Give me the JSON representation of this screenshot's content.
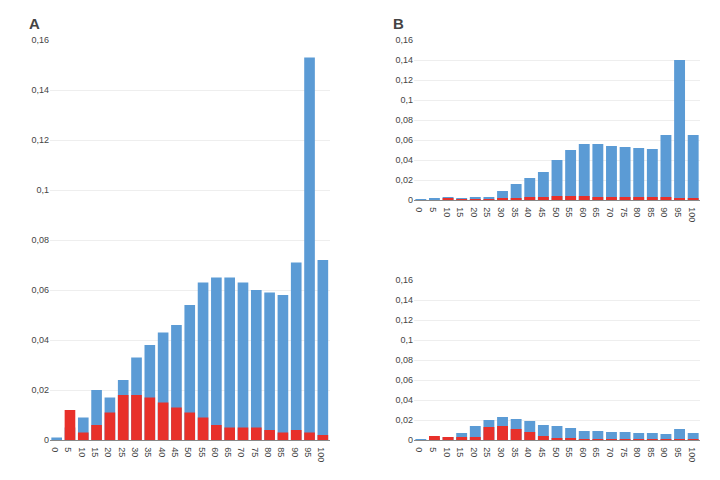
{
  "chart_data": [
    {
      "type": "bar",
      "title": "A",
      "categories": [
        0,
        5,
        10,
        15,
        20,
        25,
        30,
        35,
        40,
        45,
        50,
        55,
        60,
        65,
        70,
        75,
        80,
        85,
        90,
        95,
        100
      ],
      "series": [
        {
          "color": "#5B9BD5",
          "values": [
            0.001,
            0.005,
            0.009,
            0.02,
            0.017,
            0.024,
            0.033,
            0.038,
            0.043,
            0.046,
            0.054,
            0.063,
            0.065,
            0.065,
            0.063,
            0.06,
            0.059,
            0.058,
            0.071,
            0.153,
            0.072
          ]
        },
        {
          "color": "#E8302A",
          "values": [
            0.0,
            0.012,
            0.003,
            0.006,
            0.011,
            0.018,
            0.018,
            0.017,
            0.015,
            0.013,
            0.011,
            0.009,
            0.006,
            0.005,
            0.005,
            0.005,
            0.004,
            0.003,
            0.004,
            0.003,
            0.002
          ]
        }
      ],
      "ylim": [
        0,
        0.16
      ],
      "yticks": [
        0,
        {
          "value": 0.02,
          "label": "0,02"
        },
        {
          "value": 0.04,
          "label": "0,04"
        },
        {
          "value": 0.06,
          "label": "0,06"
        },
        {
          "value": 0.08,
          "label": "0,08"
        },
        {
          "value": 0.1,
          "label": "0,1"
        },
        {
          "value": 0.12,
          "label": "0,12"
        },
        {
          "value": 0.14,
          "label": "0,14"
        },
        {
          "value": 0.16,
          "label": "0,16"
        }
      ],
      "grid": true
    },
    {
      "type": "bar",
      "title": "B",
      "categories": [
        0,
        5,
        10,
        15,
        20,
        25,
        30,
        35,
        40,
        45,
        50,
        55,
        60,
        65,
        70,
        75,
        80,
        85,
        90,
        95,
        100
      ],
      "series": [
        {
          "color": "#5B9BD5",
          "values": [
            0.001,
            0.002,
            0.003,
            0.002,
            0.003,
            0.003,
            0.009,
            0.016,
            0.022,
            0.028,
            0.04,
            0.05,
            0.056,
            0.056,
            0.054,
            0.053,
            0.052,
            0.051,
            0.065,
            0.14,
            0.065
          ]
        },
        {
          "color": "#E8302A",
          "values": [
            0.0,
            0.0,
            0.002,
            0.001,
            0.001,
            0.001,
            0.002,
            0.002,
            0.003,
            0.003,
            0.004,
            0.004,
            0.004,
            0.003,
            0.003,
            0.003,
            0.003,
            0.003,
            0.003,
            0.002,
            0.002
          ]
        }
      ],
      "ylim": [
        0,
        0.16
      ],
      "yticks": [
        0,
        {
          "value": 0.02,
          "label": "0,02"
        },
        {
          "value": 0.04,
          "label": "0,04"
        },
        {
          "value": 0.06,
          "label": "0,06"
        },
        {
          "value": 0.08,
          "label": "0,08"
        },
        {
          "value": 0.1,
          "label": "0,1"
        },
        {
          "value": 0.12,
          "label": "0,12"
        },
        {
          "value": 0.14,
          "label": "0,14"
        },
        {
          "value": 0.16,
          "label": "0,16"
        }
      ],
      "grid": true
    },
    {
      "type": "bar",
      "categories": [
        0,
        5,
        10,
        15,
        20,
        25,
        30,
        35,
        40,
        45,
        50,
        55,
        60,
        65,
        70,
        75,
        80,
        85,
        90,
        95,
        100
      ],
      "series": [
        {
          "color": "#5B9BD5",
          "values": [
            0.001,
            0.002,
            0.003,
            0.007,
            0.014,
            0.02,
            0.023,
            0.021,
            0.019,
            0.015,
            0.014,
            0.012,
            0.009,
            0.009,
            0.008,
            0.008,
            0.007,
            0.007,
            0.006,
            0.011,
            0.007
          ]
        },
        {
          "color": "#E8302A",
          "values": [
            0.0,
            0.004,
            0.003,
            0.003,
            0.003,
            0.013,
            0.014,
            0.011,
            0.008,
            0.004,
            0.002,
            0.002,
            0.001,
            0.001,
            0.001,
            0.001,
            0.001,
            0.001,
            0.001,
            0.001,
            0.001
          ]
        }
      ],
      "ylim": [
        0,
        0.16
      ],
      "yticks": [
        0,
        {
          "value": 0.02,
          "label": "0,02"
        },
        {
          "value": 0.04,
          "label": "0,04"
        },
        {
          "value": 0.06,
          "label": "0,06"
        },
        {
          "value": 0.08,
          "label": "0,08"
        },
        {
          "value": 0.1,
          "label": "0,1"
        },
        {
          "value": 0.12,
          "label": "0,12"
        },
        {
          "value": 0.14,
          "label": "0,14"
        },
        {
          "value": 0.16,
          "label": "0,16"
        }
      ],
      "grid": true
    }
  ]
}
